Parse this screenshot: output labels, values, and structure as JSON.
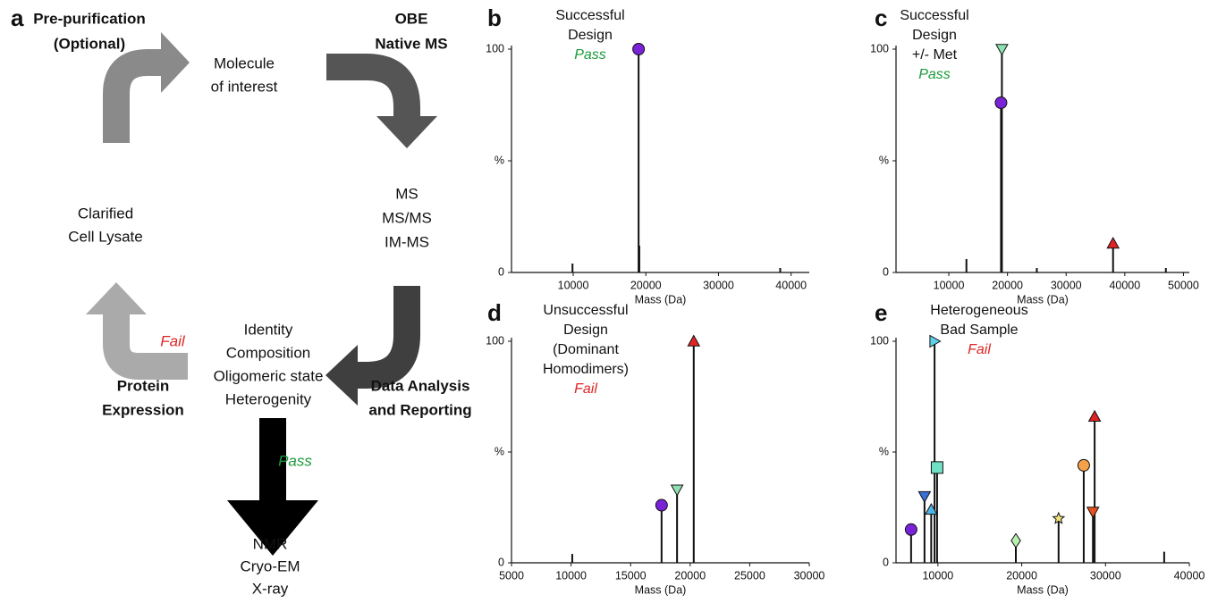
{
  "diagram": {
    "panel": "a",
    "pre_purification": [
      "Pre-purification",
      "(Optional)"
    ],
    "molecule": [
      "Molecule",
      "of interest"
    ],
    "obe": [
      "OBE",
      "Native MS"
    ],
    "ms_methods": [
      "MS",
      "MS/MS",
      "IM-MS"
    ],
    "lysate": [
      "Clarified",
      "Cell Lysate"
    ],
    "fail": "Fail",
    "expression": [
      "Protein",
      "Expression"
    ],
    "outputs": [
      "Identity",
      "Composition",
      "Oligomeric state",
      "Heterogenity"
    ],
    "analysis": [
      "Data Analysis",
      "and Reporting"
    ],
    "pass": "Pass",
    "structure": [
      "NMR",
      "Cryo-EM",
      "X-ray"
    ]
  },
  "chart_data": [
    {
      "type": "spectrum",
      "panel": "b",
      "annotation": [
        {
          "text": "Successful",
          "color": "#111111"
        },
        {
          "text": "Design",
          "color": "#111111"
        },
        {
          "text": "Pass",
          "color": "#1a9a3a",
          "style": "italic"
        }
      ],
      "x_label": "Mass (Da)",
      "xlim": [
        1500,
        42500
      ],
      "xticks": [
        10000,
        20000,
        30000,
        40000
      ],
      "ylim": [
        0,
        100
      ],
      "yticks": [
        0,
        {
          "value": 50,
          "label": "%"
        },
        100
      ],
      "color": "#111111",
      "x": [
        9900,
        19000,
        19100,
        38500
      ],
      "values": [
        4,
        100,
        12,
        2
      ],
      "markers": [
        null,
        {
          "shape": "circle",
          "color": "#7a22d8"
        },
        null,
        null
      ]
    },
    {
      "type": "spectrum",
      "panel": "c",
      "annotation": [
        {
          "text": "Successful",
          "color": "#111111"
        },
        {
          "text": "Design",
          "color": "#111111"
        },
        {
          "text": "+/- Met",
          "color": "#111111"
        },
        {
          "text": "Pass",
          "color": "#1a9a3a",
          "style": "italic"
        }
      ],
      "x_label": "Mass (Da)",
      "xlim": [
        1000,
        51000
      ],
      "xticks": [
        10000,
        20000,
        30000,
        40000,
        50000
      ],
      "ylim": [
        0,
        100
      ],
      "yticks": [
        0,
        {
          "value": 50,
          "label": "%"
        },
        100
      ],
      "color": "#111111",
      "x": [
        13000,
        18900,
        19050,
        25000,
        38000,
        47000
      ],
      "values": [
        6,
        76,
        100,
        2,
        13,
        2
      ],
      "markers": [
        null,
        {
          "shape": "circle",
          "color": "#7a22d8"
        },
        {
          "shape": "tri-down",
          "color": "#8ee0b0"
        },
        null,
        {
          "shape": "tri-up",
          "color": "#e02424"
        },
        null
      ]
    },
    {
      "type": "spectrum",
      "panel": "d",
      "annotation": [
        {
          "text": "Unsuccessful",
          "color": "#111111"
        },
        {
          "text": "Design",
          "color": "#111111"
        },
        {
          "text": "(Dominant",
          "color": "#111111"
        },
        {
          "text": "Homodimers)",
          "color": "#111111"
        },
        {
          "text": "Fail",
          "color": "#e02424",
          "style": "italic"
        }
      ],
      "x_label": "Mass (Da)",
      "xlim": [
        5000,
        30000
      ],
      "xticks": [
        5000,
        10000,
        15000,
        20000,
        25000,
        30000
      ],
      "ylim": [
        0,
        100
      ],
      "yticks": [
        0,
        {
          "value": 50,
          "label": "%"
        },
        100
      ],
      "color": "#111111",
      "x": [
        10100,
        17600,
        18900,
        20300
      ],
      "values": [
        4,
        26,
        33,
        100
      ],
      "markers": [
        null,
        {
          "shape": "circle",
          "color": "#7a22d8"
        },
        {
          "shape": "tri-down",
          "color": "#8ee0b0"
        },
        {
          "shape": "tri-up",
          "color": "#e02424"
        }
      ]
    },
    {
      "type": "spectrum",
      "panel": "e",
      "annotation": [
        {
          "text": "Heterogeneous",
          "color": "#111111"
        },
        {
          "text": "Bad Sample",
          "color": "#111111"
        },
        {
          "text": "Fail",
          "color": "#e02424",
          "style": "italic"
        }
      ],
      "x_label": "Mass (Da)",
      "xlim": [
        5000,
        40000
      ],
      "xticks": [
        10000,
        20000,
        30000,
        40000
      ],
      "ylim": [
        0,
        100
      ],
      "yticks": [
        0,
        {
          "value": 50,
          "label": "%"
        },
        100
      ],
      "color": "#111111",
      "x": [
        6800,
        8400,
        9200,
        9600,
        9900,
        19300,
        24400,
        27400,
        28500,
        28700,
        37000
      ],
      "values": [
        15,
        30,
        24,
        100,
        43,
        10,
        20,
        44,
        23,
        66,
        5
      ],
      "markers": [
        {
          "shape": "circle",
          "color": "#7a22d8"
        },
        {
          "shape": "tri-down",
          "color": "#3b6fd6"
        },
        {
          "shape": "tri-up",
          "color": "#4cb4e8"
        },
        {
          "shape": "tri-right",
          "color": "#5fd0ea"
        },
        {
          "shape": "square",
          "color": "#6fe0c4"
        },
        {
          "shape": "diamond",
          "color": "#b8f0b0"
        },
        {
          "shape": "star",
          "color": "#f6e27a"
        },
        {
          "shape": "circle",
          "color": "#f5a14a"
        },
        {
          "shape": "tri-down",
          "color": "#e8501e"
        },
        {
          "shape": "tri-up",
          "color": "#e02424"
        },
        null
      ]
    }
  ]
}
